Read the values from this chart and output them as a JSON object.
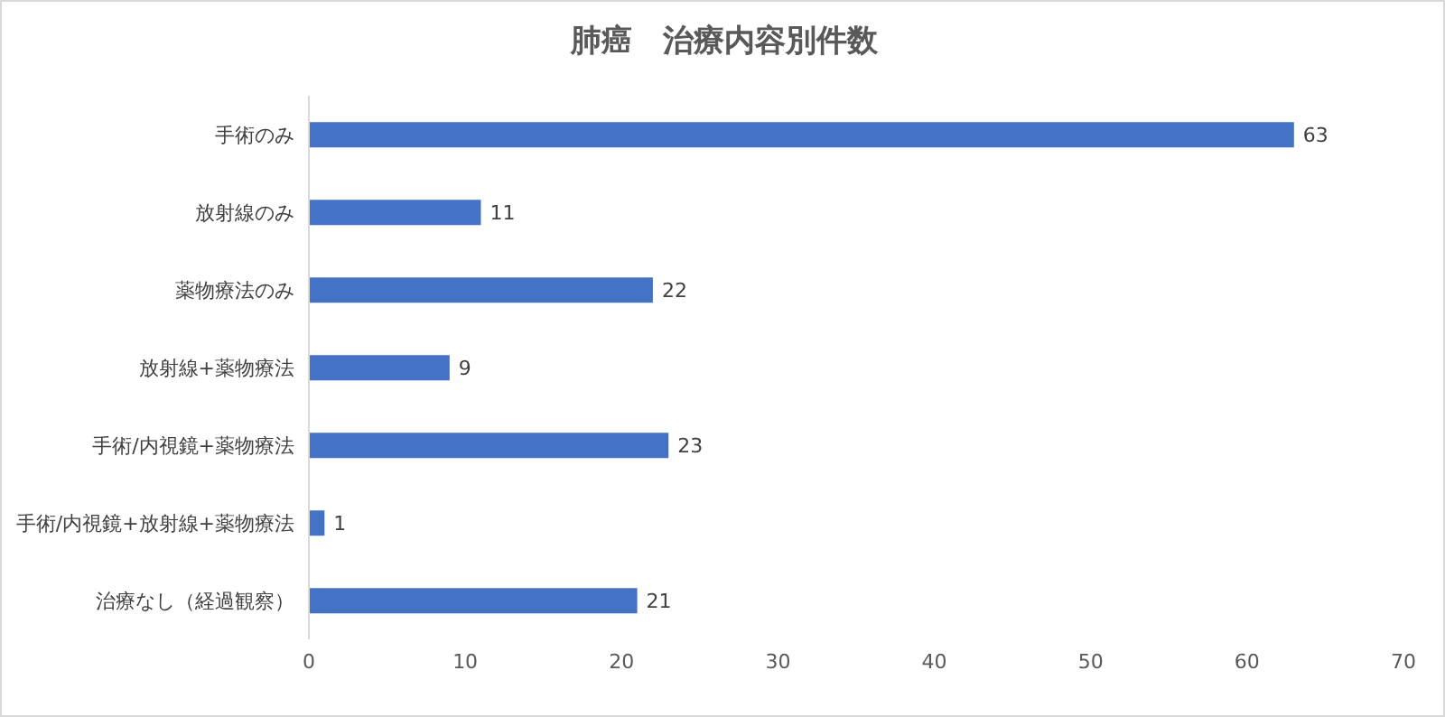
{
  "chart_data": {
    "type": "bar",
    "orientation": "horizontal",
    "title": "肺癌　治療内容別件数",
    "categories": [
      "手術のみ",
      "放射線のみ",
      "薬物療法のみ",
      "放射線+薬物療法",
      "手術/内視鏡+薬物療法",
      "手術/内視鏡+放射線+薬物療法",
      "治療なし（経過観察）"
    ],
    "values": [
      63,
      11,
      22,
      9,
      23,
      1,
      21
    ],
    "color": "#4472c4",
    "xlim": [
      0,
      70
    ],
    "xticks": [
      0,
      10,
      20,
      30,
      40,
      50,
      60,
      70
    ],
    "data_labels": true,
    "legend": false
  }
}
